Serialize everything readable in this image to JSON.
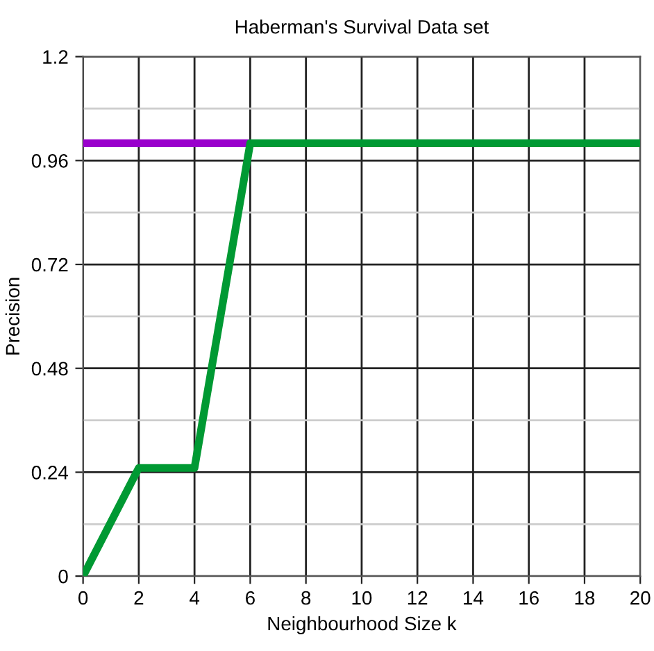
{
  "chart_data": {
    "type": "line",
    "title": "Haberman's Survival Data set",
    "xlabel": "Neighbourhood Size k",
    "ylabel": "Precision",
    "series": [
      {
        "color": "#9900cc",
        "x": [
          0,
          2,
          4,
          6
        ],
        "values": [
          1,
          1,
          1,
          1
        ]
      },
      {
        "color": "#009933",
        "x": [
          0,
          2,
          4,
          6,
          8,
          10,
          12,
          14,
          16,
          18,
          20
        ],
        "values": [
          0,
          0.25,
          0.25,
          1,
          1,
          1,
          1,
          1,
          1,
          1,
          1
        ]
      }
    ],
    "xlim": [
      0,
      20
    ],
    "xticks": [
      0,
      2,
      4,
      6,
      8,
      10,
      12,
      14,
      16,
      18,
      20
    ],
    "ylim": [
      0,
      1.2
    ],
    "yticks": [
      0,
      {
        "value": 0.12,
        "label": null
      },
      0.24,
      {
        "value": 0.36,
        "label": null
      },
      0.48,
      {
        "value": 0.6,
        "label": null
      },
      0.72,
      {
        "value": 0.84,
        "label": null
      },
      0.96,
      {
        "value": 1.08,
        "label": null
      },
      1.2
    ],
    "grid": true,
    "marker": "none",
    "line_style": "solid"
  }
}
